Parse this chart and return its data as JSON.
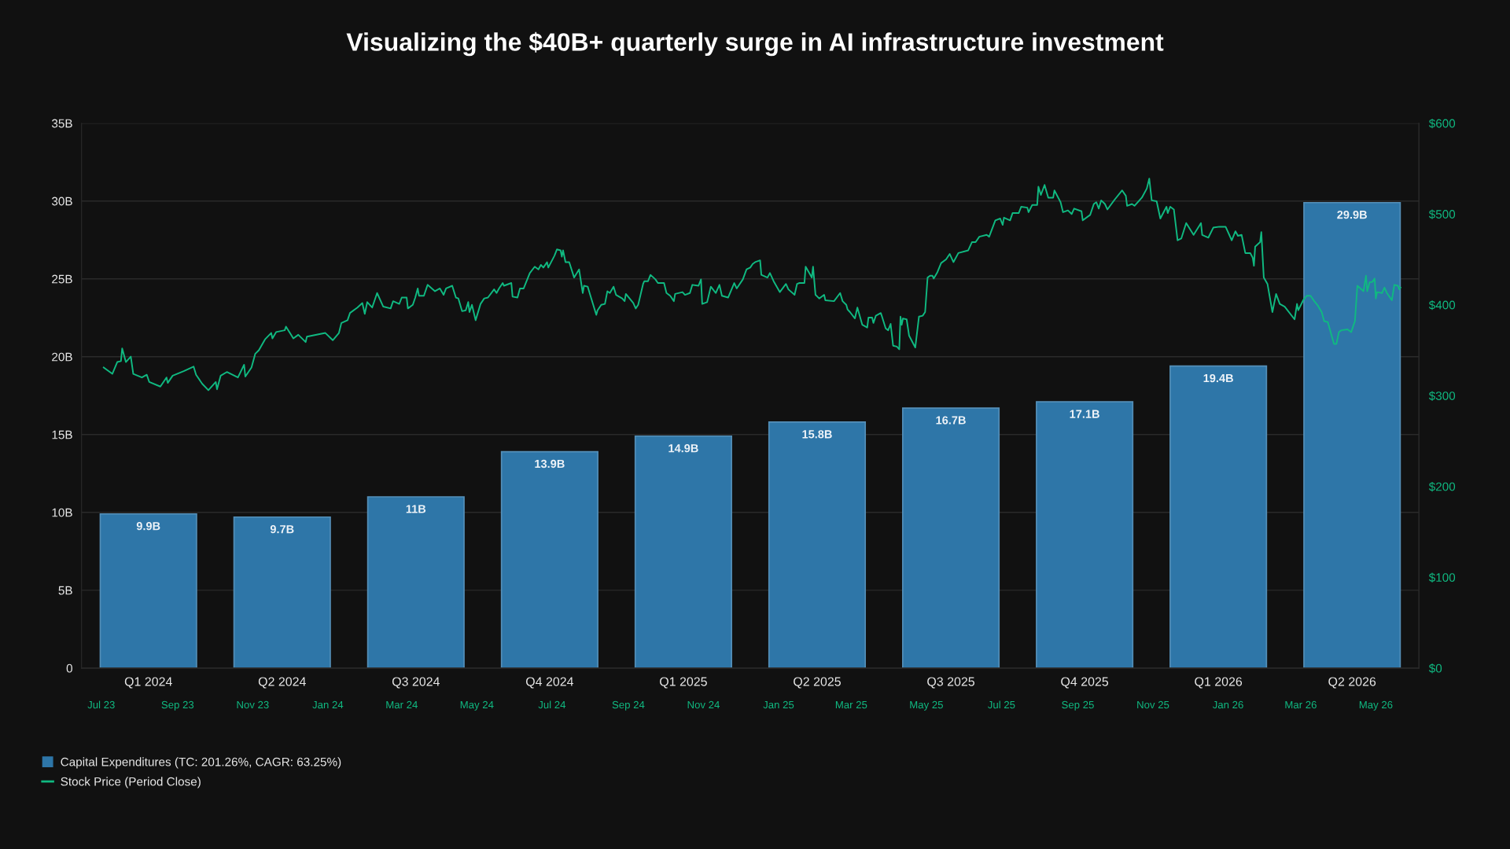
{
  "chart_data": [
    {
      "type": "bar",
      "title": "Visualizing the $40B+ quarterly surge in AI infrastructure investment",
      "categories": [
        "Q1 2024",
        "Q2 2024",
        "Q3 2024",
        "Q4 2024",
        "Q1 2025",
        "Q2 2025",
        "Q3 2025",
        "Q4 2025",
        "Q1 2026",
        "Q2 2026"
      ],
      "series": [
        {
          "name": "Capital Expenditures (TC: 201.26%, CAGR: 63.25%)",
          "color": "#2e76a8",
          "values": [
            9.9,
            9.7,
            11,
            13.9,
            14.9,
            15.8,
            16.7,
            17.1,
            19.4,
            29.9
          ],
          "value_labels": [
            "9.9B",
            "9.7B",
            "11B",
            "13.9B",
            "14.9B",
            "15.8B",
            "16.7B",
            "17.1B",
            "19.4B",
            "29.9B"
          ]
        }
      ],
      "ylim": [
        0,
        35
      ],
      "yticks": [
        0,
        {
          "value": 5,
          "label": "5B"
        },
        {
          "value": 10,
          "label": "10B"
        },
        {
          "value": 15,
          "label": "15B"
        },
        {
          "value": 20,
          "label": "20B"
        },
        {
          "value": 25,
          "label": "25B"
        },
        {
          "value": 30,
          "label": "30B"
        },
        {
          "value": 35,
          "label": "35B"
        }
      ],
      "grid": "y",
      "legend": "bottom left"
    },
    {
      "type": "line",
      "x": [
        "2023-07-03",
        "2023-07-10",
        "2023-07-14",
        "2023-07-17",
        "2023-07-18",
        "2023-07-21",
        "2023-07-25",
        "2023-07-27",
        "2023-08-03",
        "2023-08-07",
        "2023-08-09",
        "2023-08-18",
        "2023-08-23",
        "2023-08-24",
        "2023-08-28",
        "2023-09-06",
        "2023-09-14",
        "2023-09-16",
        "2023-09-21",
        "2023-09-26",
        "2023-10-02",
        "2023-10-03",
        "2023-10-06",
        "2023-10-11",
        "2023-10-20",
        "2023-10-25",
        "2023-10-26",
        "2023-10-31",
        "2023-11-03",
        "2023-11-06",
        "2023-11-11",
        "2023-11-16",
        "2023-11-17",
        "2023-11-20",
        "2023-11-27",
        "2023-11-28",
        "2023-12-04",
        "2023-12-08",
        "2023-12-14",
        "2023-12-15",
        "2023-12-30",
        "2024-01-05",
        "2024-01-10",
        "2024-01-12",
        "2024-01-17",
        "2024-01-19",
        "2024-01-25",
        "2024-01-29",
        "2024-01-31",
        "2024-02-02",
        "2024-02-06",
        "2024-02-10",
        "2024-02-15",
        "2024-02-21",
        "2024-02-23",
        "2024-02-28",
        "2024-03-01",
        "2024-03-05",
        "2024-03-06",
        "2024-03-10",
        "2024-03-12",
        "2024-03-14",
        "2024-03-15",
        "2024-03-19",
        "2024-03-22",
        "2024-03-28",
        "2024-04-01",
        "2024-04-04",
        "2024-04-06",
        "2024-04-11",
        "2024-04-14",
        "2024-04-16",
        "2024-04-19",
        "2024-04-22",
        "2024-04-24",
        "2024-04-25",
        "2024-04-27",
        "2024-04-30",
        "2024-05-04",
        "2024-05-07",
        "2024-05-10",
        "2024-05-15",
        "2024-05-17",
        "2024-05-19",
        "2024-05-22",
        "2024-05-23",
        "2024-05-29",
        "2024-05-30",
        "2024-06-03",
        "2024-06-05",
        "2024-06-08",
        "2024-06-13",
        "2024-06-17",
        "2024-06-20",
        "2024-06-22",
        "2024-06-24",
        "2024-06-27",
        "2024-06-28",
        "2024-07-03",
        "2024-07-05",
        "2024-07-08",
        "2024-07-09",
        "2024-07-10",
        "2024-07-12",
        "2024-07-15",
        "2024-07-19",
        "2024-07-23",
        "2024-07-26",
        "2024-07-27",
        "2024-07-30",
        "2024-08-01",
        "2024-08-06",
        "2024-08-07",
        "2024-08-10",
        "2024-08-13",
        "2024-08-15",
        "2024-08-17",
        "2024-08-20",
        "2024-08-22",
        "2024-08-27",
        "2024-08-29",
        "2024-08-30",
        "2024-09-02",
        "2024-09-05",
        "2024-09-07",
        "2024-09-09",
        "2024-09-13",
        "2024-09-14",
        "2024-09-17",
        "2024-09-19",
        "2024-09-23",
        "2024-09-25",
        "2024-09-30",
        "2024-10-02",
        "2024-10-05",
        "2024-10-08",
        "2024-10-09",
        "2024-10-15",
        "2024-10-17",
        "2024-10-21",
        "2024-10-23",
        "2024-10-28",
        "2024-10-30",
        "2024-10-31",
        "2024-11-04",
        "2024-11-07",
        "2024-11-11",
        "2024-11-14",
        "2024-11-16",
        "2024-11-21",
        "2024-11-26",
        "2024-11-28",
        "2024-12-03",
        "2024-12-06",
        "2024-12-09",
        "2024-12-11",
        "2024-12-13",
        "2024-12-17",
        "2024-12-18",
        "2024-12-23",
        "2024-12-25",
        "2024-12-28",
        "2025-01-02",
        "2025-01-07",
        "2025-01-09",
        "2025-01-14",
        "2025-01-16",
        "2025-01-18",
        "2025-01-22",
        "2025-01-23",
        "2025-01-28",
        "2025-01-29",
        "2025-01-31",
        "2025-02-03",
        "2025-02-07",
        "2025-02-08",
        "2025-02-15",
        "2025-02-20",
        "2025-02-22",
        "2025-02-25",
        "2025-02-26",
        "2025-02-28",
        "2025-03-04",
        "2025-03-06",
        "2025-03-10",
        "2025-03-14",
        "2025-03-15",
        "2025-03-18",
        "2025-03-19",
        "2025-03-21",
        "2025-03-25",
        "2025-03-26",
        "2025-03-29",
        "2025-03-31",
        "2025-04-02",
        "2025-04-04",
        "2025-04-07",
        "2025-04-09",
        "2025-04-10",
        "2025-04-11",
        "2025-04-12",
        "2025-04-15",
        "2025-04-17",
        "2025-04-22",
        "2025-04-25",
        "2025-04-28",
        "2025-04-30",
        "2025-05-02",
        "2025-05-04",
        "2025-05-06",
        "2025-05-07",
        "2025-05-10",
        "2025-05-13",
        "2025-05-17",
        "2025-05-20",
        "2025-05-23",
        "2025-05-27",
        "2025-06-04",
        "2025-06-07",
        "2025-06-10",
        "2025-06-13",
        "2025-06-19",
        "2025-06-21",
        "2025-06-26",
        "2025-06-30",
        "2025-07-02",
        "2025-07-03",
        "2025-07-08",
        "2025-07-10",
        "2025-07-15",
        "2025-07-17",
        "2025-07-22",
        "2025-07-23",
        "2025-07-26",
        "2025-07-30",
        "2025-07-31",
        "2025-08-02",
        "2025-08-05",
        "2025-08-08",
        "2025-08-12",
        "2025-08-13",
        "2025-08-18",
        "2025-08-20",
        "2025-08-24",
        "2025-08-27",
        "2025-08-29",
        "2025-09-04",
        "2025-09-05",
        "2025-09-11",
        "2025-09-14",
        "2025-09-16",
        "2025-09-18",
        "2025-09-20",
        "2025-09-23",
        "2025-09-25",
        "2025-10-01",
        "2025-10-07",
        "2025-10-10",
        "2025-10-11",
        "2025-10-15",
        "2025-10-17",
        "2025-10-23",
        "2025-10-27",
        "2025-10-29",
        "2025-10-31",
        "2025-11-04",
        "2025-11-07",
        "2025-11-12",
        "2025-11-13",
        "2025-11-15",
        "2025-11-18",
        "2025-11-21",
        "2025-11-24",
        "2025-11-28",
        "2025-12-04",
        "2025-12-10",
        "2025-12-11",
        "2025-12-16",
        "2025-12-20",
        "2025-12-25",
        "2025-12-30",
        "2026-01-04",
        "2026-01-07",
        "2026-01-09",
        "2026-01-12",
        "2026-01-15",
        "2026-01-19",
        "2026-01-21",
        "2026-01-22",
        "2026-01-23",
        "2026-01-27",
        "2026-01-28",
        "2026-01-30",
        "2026-02-02",
        "2026-02-06",
        "2026-02-09",
        "2026-02-12",
        "2026-02-16",
        "2026-02-24",
        "2026-02-26",
        "2026-02-27",
        "2026-03-03",
        "2026-03-06",
        "2026-03-09",
        "2026-03-12",
        "2026-03-15",
        "2026-03-18",
        "2026-03-20",
        "2026-03-23",
        "2026-03-28",
        "2026-03-30",
        "2026-04-01",
        "2026-04-03",
        "2026-04-08",
        "2026-04-11",
        "2026-04-14",
        "2026-04-16",
        "2026-04-21",
        "2026-04-23",
        "2026-04-24",
        "2026-04-26",
        "2026-04-28",
        "2026-04-30",
        "2026-05-01",
        "2026-05-02",
        "2026-05-06",
        "2026-05-08",
        "2026-05-10",
        "2026-05-14",
        "2026-05-16",
        "2026-05-19",
        "2026-05-20",
        "2026-05-21"
      ],
      "series": [
        {
          "name": "Stock Price (Period Close)",
          "color": "#10b981",
          "values": [
            331,
            324,
            337,
            338,
            352,
            337,
            343,
            324,
            320,
            323,
            315,
            310,
            320,
            314,
            322,
            327,
            332,
            323,
            313,
            306,
            315,
            307,
            322,
            326,
            320,
            334,
            321,
            331,
            346,
            350,
            362,
            369,
            363,
            370,
            372,
            376,
            363,
            367,
            359,
            365,
            369,
            361,
            369,
            380,
            383,
            391,
            397,
            402,
            390,
            403,
            397,
            413,
            398,
            396,
            404,
            401,
            408,
            408,
            396,
            400,
            408,
            418,
            410,
            410,
            422,
            415,
            418,
            411,
            418,
            421,
            408,
            407,
            393,
            394,
            403,
            392,
            400,
            383,
            401,
            407,
            408,
            417,
            413,
            418,
            424,
            421,
            424,
            409,
            408,
            418,
            418,
            435,
            442,
            439,
            444,
            441,
            447,
            441,
            454,
            461,
            460,
            453,
            460,
            447,
            447,
            430,
            439,
            413,
            421,
            420,
            411,
            389,
            394,
            400,
            401,
            415,
            413,
            420,
            411,
            407,
            404,
            412,
            407,
            402,
            396,
            400,
            423,
            426,
            426,
            433,
            428,
            424,
            424,
            413,
            410,
            404,
            412,
            414,
            411,
            413,
            422,
            421,
            428,
            401,
            403,
            420,
            413,
            422,
            410,
            408,
            424,
            418,
            428,
            439,
            441,
            445,
            447,
            449,
            433,
            430,
            435,
            426,
            414,
            423,
            417,
            411,
            423,
            424,
            424,
            442,
            430,
            442,
            411,
            407,
            411,
            405,
            404,
            413,
            404,
            400,
            395,
            392,
            385,
            397,
            378,
            375,
            386,
            386,
            380,
            388,
            391,
            387,
            374,
            372,
            379,
            355,
            354,
            351,
            387,
            378,
            385,
            384,
            366,
            353,
            387,
            388,
            392,
            430,
            432,
            432,
            429,
            436,
            446,
            450,
            456,
            447,
            457,
            460,
            469,
            469,
            475,
            477,
            475,
            493,
            495,
            488,
            496,
            493,
            501,
            501,
            508,
            507,
            502,
            510,
            510,
            530,
            521,
            532,
            518,
            518,
            526,
            513,
            502,
            504,
            500,
            506,
            503,
            493,
            499,
            511,
            513,
            506,
            515,
            511,
            505,
            516,
            526,
            520,
            509,
            511,
            509,
            518,
            528,
            539,
            515,
            514,
            495,
            508,
            501,
            508,
            505,
            471,
            473,
            490,
            477,
            490,
            477,
            474,
            485,
            486,
            486,
            471,
            481,
            476,
            477,
            457,
            457,
            452,
            443,
            464,
            469,
            480,
            430,
            423,
            392,
            412,
            401,
            398,
            384,
            401,
            394,
            405,
            410,
            410,
            404,
            399,
            392,
            382,
            381,
            357,
            357,
            370,
            372,
            373,
            370,
            382,
            421,
            415,
            432,
            415,
            425,
            425,
            429,
            407,
            414,
            413,
            419,
            413,
            405,
            422,
            421,
            417,
            419
          ]
        }
      ],
      "xlim": [
        "2023-06-15",
        "2026-06-05"
      ],
      "xticks": [
        {
          "value": "2023-07-01",
          "label": "Jul 23"
        },
        {
          "value": "2023-09-01",
          "label": "Sep 23"
        },
        {
          "value": "2023-11-01",
          "label": "Nov 23"
        },
        {
          "value": "2024-01-01",
          "label": "Jan 24"
        },
        {
          "value": "2024-03-01",
          "label": "Mar 24"
        },
        {
          "value": "2024-05-01",
          "label": "May 24"
        },
        {
          "value": "2024-07-01",
          "label": "Jul 24"
        },
        {
          "value": "2024-09-01",
          "label": "Sep 24"
        },
        {
          "value": "2024-11-01",
          "label": "Nov 24"
        },
        {
          "value": "2025-01-01",
          "label": "Jan 25"
        },
        {
          "value": "2025-03-01",
          "label": "Mar 25"
        },
        {
          "value": "2025-05-01",
          "label": "May 25"
        },
        {
          "value": "2025-07-01",
          "label": "Jul 25"
        },
        {
          "value": "2025-09-01",
          "label": "Sep 25"
        },
        {
          "value": "2025-11-01",
          "label": "Nov 25"
        },
        {
          "value": "2026-01-01",
          "label": "Jan 26"
        },
        {
          "value": "2026-03-01",
          "label": "Mar 26"
        },
        {
          "value": "2026-05-01",
          "label": "May 26"
        }
      ],
      "ylim": [
        0,
        600
      ],
      "yticks": [
        {
          "value": 0,
          "label": "$0"
        },
        {
          "value": 100,
          "label": "$100"
        },
        {
          "value": 200,
          "label": "$200"
        },
        {
          "value": 300,
          "label": "$300"
        },
        {
          "value": 400,
          "label": "$400"
        },
        {
          "value": 500,
          "label": "$500"
        },
        {
          "value": 600,
          "label": "$600"
        }
      ],
      "legend": "bottom left"
    }
  ]
}
